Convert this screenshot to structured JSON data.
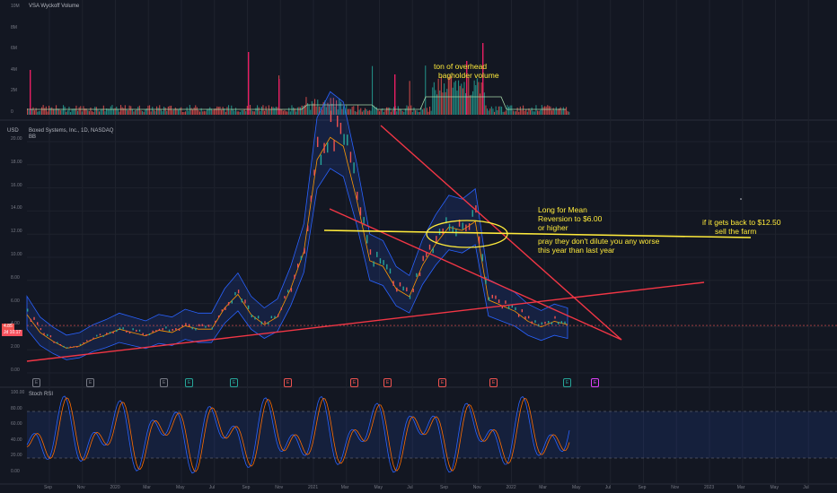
{
  "colors": {
    "background": "#131722",
    "grid": "#1e222d",
    "text": "#787b86",
    "annotation": "#ffeb3b",
    "trendline": "#f23645",
    "band": "#2962ff",
    "volume_up": "#26a69a",
    "volume_down": "#ef5350",
    "price_tag": "#ef5350",
    "ma_tag": "#f7525f"
  },
  "volume_pane": {
    "title": "VSA Wyckoff Volume",
    "y_ticks": [
      "10M",
      "8M",
      "6M",
      "4M",
      "2M",
      "0"
    ]
  },
  "price_pane": {
    "currency": "USD",
    "title": "Boxed Systems, Inc., 1D, NASDAQ",
    "subtitle": "BB",
    "y_ticks": [
      "20.00",
      "18.00",
      "16.00",
      "14.00",
      "12.00",
      "10.00",
      "8.00",
      "6.00",
      "4.00",
      "2.00",
      "0.00"
    ],
    "last_price": "4.85",
    "ma_value": "Jd 10.17"
  },
  "rsi_pane": {
    "title": "Stoch RSI",
    "y_ticks": [
      "100.00",
      "80.00",
      "60.00",
      "40.00",
      "20.00",
      "0.00"
    ]
  },
  "x_axis_labels": [
    "Sep",
    "Nov",
    "2020",
    "Mar",
    "May",
    "Jul",
    "Sep",
    "Nov",
    "2021",
    "Mar",
    "May",
    "Jul",
    "Sep",
    "Nov",
    "2022",
    "Mar",
    "May",
    "Jul",
    "Sep",
    "Nov",
    "2023",
    "Mar",
    "May",
    "Jul"
  ],
  "event_markers": [
    "E",
    "E",
    "E",
    "E",
    "E",
    "E",
    "E",
    "E",
    "E",
    "E",
    "E",
    "E"
  ],
  "annotations": {
    "volume_note": [
      "ton of overhead",
      "bagholder volume"
    ],
    "mean_reversion": [
      "Long for Mean",
      "Reversion to $6.00",
      "or higher"
    ],
    "dilution": [
      "pray they don't dilute you any worse",
      "this year than last year"
    ],
    "target": [
      "if it gets back to $12.50",
      "sell the farm"
    ]
  },
  "chart_data": {
    "type": "line",
    "series": [
      {
        "values": [
          5.2,
          3.6,
          2.8,
          2.2,
          2.4,
          3.0,
          3.4,
          3.9,
          3.6,
          3.3,
          3.8,
          3.6,
          4.2,
          3.9,
          3.9,
          5.8,
          7.0,
          5.2,
          4.3,
          5.0,
          7.5,
          10.8,
          19.0,
          21.0,
          20.2,
          15.5,
          10.0,
          9.5,
          7.5,
          6.8,
          9.6,
          11.5,
          13.0,
          12.7,
          13.5,
          6.5,
          6.0,
          5.5,
          4.6,
          4.1,
          4.6,
          4.3
        ]
      }
    ],
    "y_range": [
      0,
      21
    ],
    "trendlines": [
      {
        "from": [
          "2019-07",
          1.0
        ],
        "to": [
          "2022-12",
          7.9
        ]
      },
      {
        "from": [
          "2021-02",
          14.0
        ],
        "to": [
          "2022-07",
          0.5
        ]
      },
      {
        "from": [
          "2021-05",
          21.5
        ],
        "to": [
          "2022-07",
          0.5
        ]
      },
      {
        "from": [
          "2021-02",
          12.3
        ],
        "to": [
          "2022-12",
          11.7
        ]
      }
    ],
    "stoch_rsi_range": [
      0,
      100
    ],
    "stoch_rsi_bands": [
      20,
      80
    ]
  }
}
